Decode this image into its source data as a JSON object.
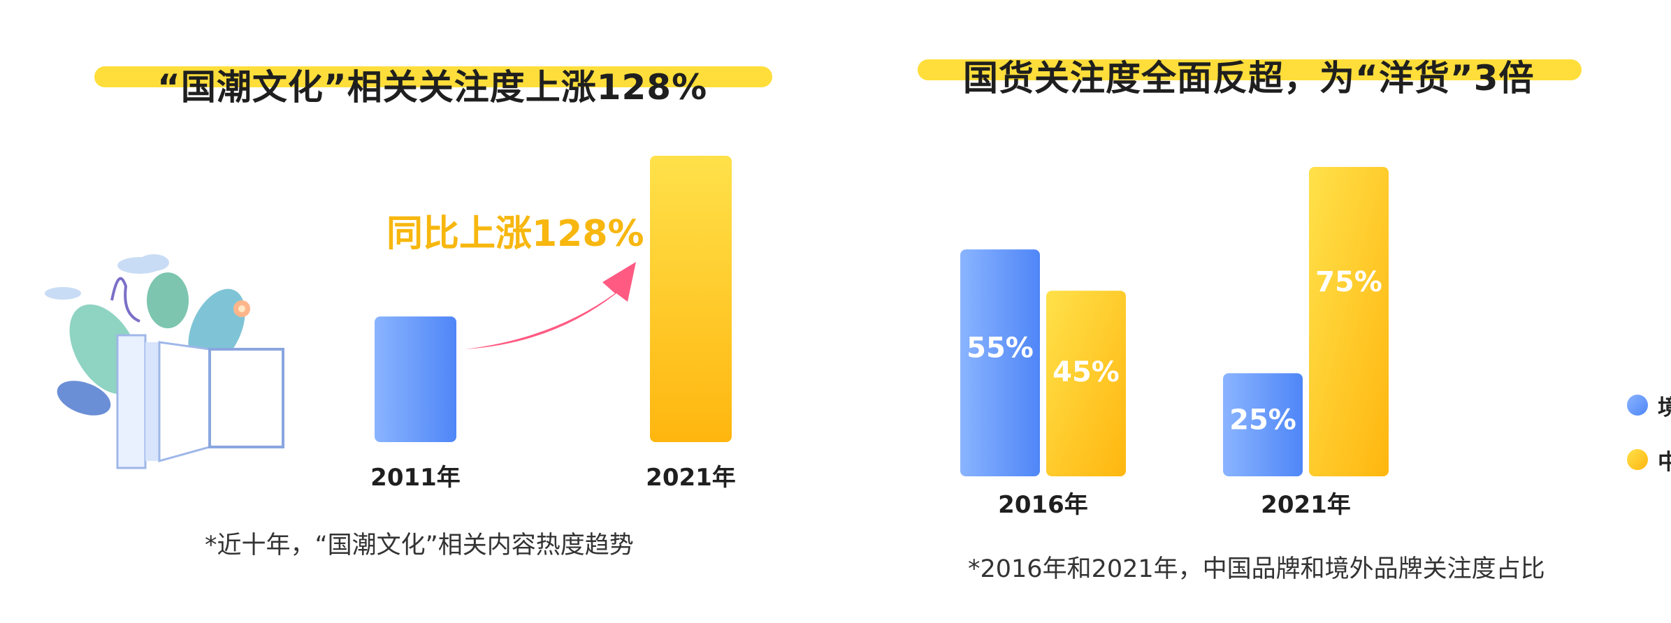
{
  "colors": {
    "highlight": "#ffde3b",
    "blue_top": "#8ab4ff",
    "blue_bottom": "#4f86f7",
    "yellow_top": "#ffe14a",
    "yellow_bottom": "#ffb60f",
    "annotation": "#f7b70f",
    "arrow": "#ff5a82"
  },
  "left": {
    "title": "“国潮文化”相关关注度上涨128%",
    "caption": "*近十年，“国潮文化”相关内容热度趋势",
    "illustration": "open-book-with-plants",
    "icons": [
      "trend-arrow-icon"
    ]
  },
  "right": {
    "title": "国货关注度全面反超，为“洋货”3倍",
    "caption": "*2016年和2021年，中国品牌和境外品牌关注度占比",
    "legend": [
      {
        "label": "境外品牌",
        "color": "#5b8ff9"
      },
      {
        "label": "中国品牌",
        "color": "#ffc31a"
      }
    ]
  },
  "chart_data": [
    {
      "type": "bar",
      "categories": [
        "2011年",
        "2021年"
      ],
      "values": [
        100,
        228
      ],
      "annotation": "同比上涨128%",
      "ylim": [
        0,
        228
      ],
      "grid": false,
      "bar_colors": [
        "blue",
        "yellow"
      ]
    },
    {
      "type": "bar",
      "categories": [
        "2016年",
        "2021年"
      ],
      "series": [
        {
          "name": "境外品牌",
          "values": [
            55,
            25
          ],
          "labels": [
            "55%",
            "25%"
          ]
        },
        {
          "name": "中国品牌",
          "values": [
            45,
            75
          ],
          "labels": [
            "45%",
            "75%"
          ]
        }
      ],
      "ylim": [
        0,
        75
      ],
      "grid": false,
      "legend_position": "right"
    }
  ]
}
